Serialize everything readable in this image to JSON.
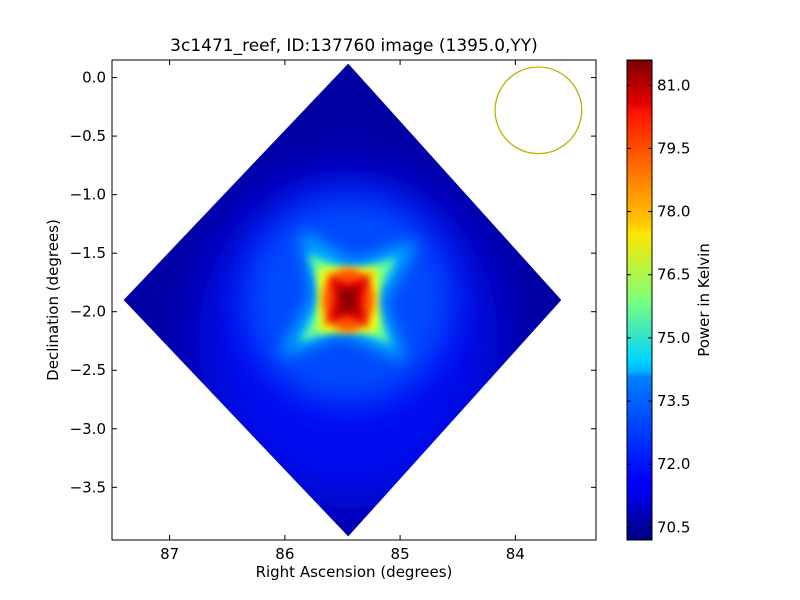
{
  "chart_data": {
    "type": "heatmap",
    "title": "3c1471_reef, ID:137760 image (1395.0,YY)",
    "xlabel": "Right Ascension (degrees)",
    "ylabel": "Declination (degrees)",
    "xlim": [
      87.5,
      83.3
    ],
    "ylim": [
      -3.95,
      0.15
    ],
    "x_ticks": [
      87,
      86,
      85,
      84
    ],
    "x_tick_labels": [
      "87",
      "86",
      "85",
      "84"
    ],
    "y_ticks": [
      0.0,
      -0.5,
      -1.0,
      -1.5,
      -2.0,
      -2.5,
      -3.0,
      -3.5
    ],
    "y_tick_labels": [
      "0.0",
      "−0.5",
      "−1.0",
      "−1.5",
      "−2.0",
      "−2.5",
      "−3.0",
      "−3.5"
    ],
    "colorbar": {
      "label": "Power in Kelvin",
      "range": [
        70.2,
        81.6
      ],
      "ticks": [
        81.0,
        79.5,
        78.0,
        76.5,
        75.0,
        73.5,
        72.0,
        70.5
      ],
      "tick_labels": [
        "81.0",
        "79.5",
        "78.0",
        "76.5",
        "75.0",
        "73.5",
        "72.0",
        "70.5"
      ],
      "colormap": "jet"
    },
    "image_region": {
      "shape": "diamond",
      "corners_ra_dec": [
        [
          85.45,
          0.12
        ],
        [
          83.6,
          -1.9
        ],
        [
          85.45,
          -3.92
        ],
        [
          87.4,
          -1.9
        ]
      ],
      "background_value": 70.6
    },
    "peak": {
      "ra": 85.45,
      "dec": -1.9,
      "value": 81.5
    },
    "beam_circle": {
      "ra": 83.8,
      "dec": -0.28,
      "radius_deg": 0.37,
      "color": "#bfb000"
    }
  }
}
